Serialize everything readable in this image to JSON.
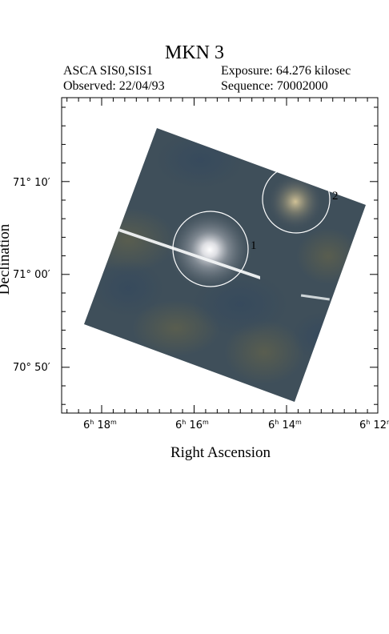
{
  "header": {
    "title": "MKN 3",
    "instrument": "ASCA SIS0,SIS1",
    "observed": "Observed: 22/04/93",
    "exposure": "Exposure: 64.276 kilosec",
    "sequence": "Sequence: 70002000"
  },
  "axes": {
    "xlabel": "Right Ascension",
    "ylabel": "Declination",
    "ra_ticks": [
      {
        "h": "6",
        "m": "18"
      },
      {
        "h": "6",
        "m": "16"
      },
      {
        "h": "6",
        "m": "14"
      },
      {
        "h": "6",
        "m": "12"
      }
    ],
    "dec_ticks": [
      "71° 10′",
      "71° 00′",
      "70° 50′"
    ]
  },
  "sources": [
    {
      "label": "1"
    },
    {
      "label": "2"
    }
  ],
  "colors": {
    "field_dark": "#3b4a55",
    "field_mid": "#4a5b66",
    "source_core": "#ffffff"
  }
}
